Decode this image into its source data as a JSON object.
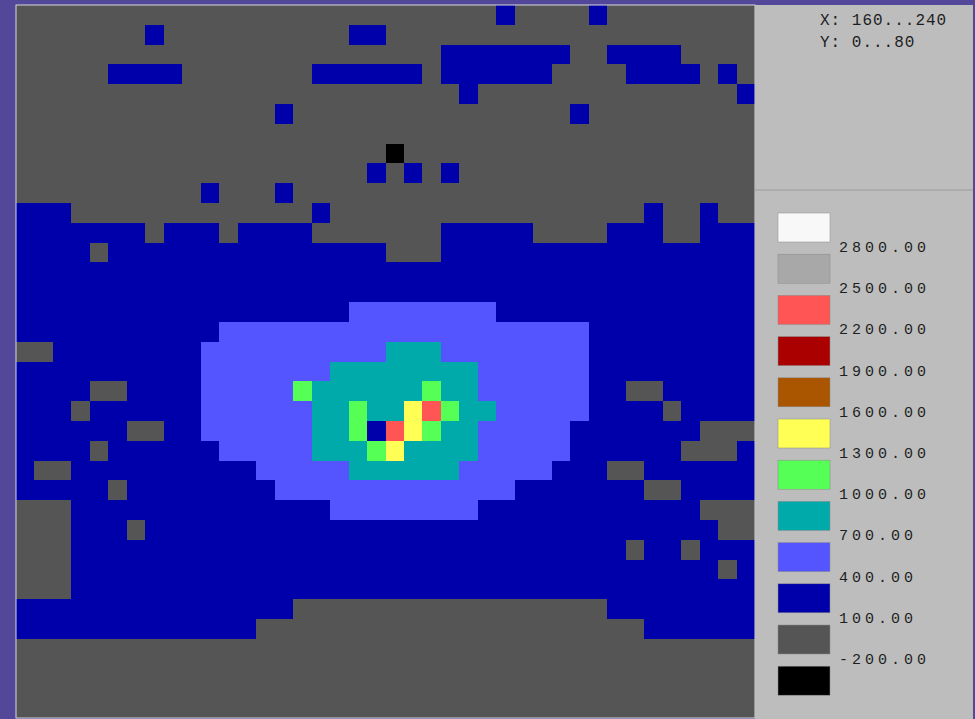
{
  "chart_data": {
    "type": "heatmap",
    "annotations": [
      "X: 160...240",
      "Y: 0...80"
    ],
    "xlim": [
      160,
      240
    ],
    "ylim": [
      0,
      80
    ],
    "tick_labels": false,
    "levels": [
      {
        "value": -200,
        "label": "-200.00"
      },
      {
        "value": 100,
        "label": "100.00"
      },
      {
        "value": 400,
        "label": "400.00"
      },
      {
        "value": 700,
        "label": "700.00"
      },
      {
        "value": 1000,
        "label": "1000.00"
      },
      {
        "value": 1300,
        "label": "1300.00"
      },
      {
        "value": 1600,
        "label": "1600.00"
      },
      {
        "value": 1900,
        "label": "1900.00"
      },
      {
        "value": 2200,
        "label": "2200.00"
      },
      {
        "value": 2500,
        "label": "2500.00"
      },
      {
        "value": 2800,
        "label": "2800.00"
      }
    ],
    "colors": [
      "#000000",
      "#555555",
      "#0000aa",
      "#5555ff",
      "#00aaaa",
      "#55ff55",
      "#ffff55",
      "#aa5500",
      "#aa0000",
      "#ff5555",
      "#a8a8a8",
      "#f8f8f8"
    ],
    "cells": [
      [
        0,
        0,
        0,
        0,
        0,
        0,
        0,
        0,
        0,
        0,
        0,
        0,
        0,
        0,
        0,
        0,
        0,
        0,
        0,
        0,
        0,
        0,
        0,
        0,
        0,
        0,
        200,
        0,
        0,
        0,
        0,
        200,
        0,
        0,
        0,
        0,
        0,
        0,
        0,
        0
      ],
      [
        0,
        0,
        0,
        0,
        0,
        0,
        0,
        200,
        0,
        0,
        0,
        0,
        0,
        0,
        0,
        0,
        0,
        0,
        200,
        200,
        0,
        0,
        0,
        0,
        0,
        0,
        0,
        0,
        0,
        0,
        0,
        0,
        0,
        0,
        0,
        0,
        0,
        0,
        0,
        0
      ],
      [
        0,
        0,
        0,
        0,
        0,
        0,
        0,
        0,
        0,
        0,
        0,
        0,
        0,
        0,
        0,
        0,
        0,
        0,
        0,
        0,
        0,
        0,
        0,
        200,
        200,
        200,
        200,
        200,
        200,
        200,
        0,
        0,
        200,
        200,
        200,
        200,
        0,
        0,
        0,
        0
      ],
      [
        0,
        0,
        0,
        0,
        0,
        200,
        200,
        200,
        200,
        0,
        0,
        0,
        0,
        0,
        0,
        0,
        200,
        200,
        200,
        200,
        200,
        200,
        0,
        200,
        200,
        200,
        200,
        200,
        200,
        0,
        0,
        0,
        0,
        200,
        200,
        200,
        200,
        0,
        200,
        0
      ],
      [
        0,
        0,
        0,
        0,
        0,
        0,
        0,
        0,
        0,
        0,
        0,
        0,
        0,
        0,
        0,
        0,
        0,
        0,
        0,
        0,
        0,
        0,
        0,
        0,
        200,
        0,
        0,
        0,
        0,
        0,
        0,
        0,
        0,
        0,
        0,
        0,
        0,
        0,
        0,
        200
      ],
      [
        0,
        0,
        0,
        0,
        0,
        0,
        0,
        0,
        0,
        0,
        0,
        0,
        0,
        0,
        200,
        0,
        0,
        0,
        0,
        0,
        0,
        0,
        0,
        0,
        0,
        0,
        0,
        0,
        0,
        0,
        200,
        0,
        0,
        0,
        0,
        0,
        0,
        0,
        0,
        0
      ],
      [
        0,
        0,
        0,
        0,
        0,
        0,
        0,
        0,
        0,
        0,
        0,
        0,
        0,
        0,
        0,
        0,
        0,
        0,
        0,
        0,
        0,
        0,
        0,
        0,
        0,
        0,
        0,
        0,
        0,
        0,
        0,
        0,
        0,
        0,
        0,
        0,
        0,
        0,
        0,
        0
      ],
      [
        0,
        0,
        0,
        0,
        0,
        0,
        0,
        0,
        0,
        0,
        0,
        0,
        0,
        0,
        0,
        0,
        0,
        0,
        0,
        0,
        -300,
        0,
        0,
        0,
        0,
        0,
        0,
        0,
        0,
        0,
        0,
        0,
        0,
        0,
        0,
        0,
        0,
        0,
        0,
        0
      ],
      [
        0,
        0,
        0,
        0,
        0,
        0,
        0,
        0,
        0,
        0,
        0,
        0,
        0,
        0,
        0,
        0,
        0,
        0,
        0,
        200,
        0,
        200,
        0,
        200,
        0,
        0,
        0,
        0,
        0,
        0,
        0,
        0,
        0,
        0,
        0,
        0,
        0,
        0,
        0,
        0
      ],
      [
        0,
        0,
        0,
        0,
        0,
        0,
        0,
        0,
        0,
        0,
        200,
        0,
        0,
        0,
        200,
        0,
        0,
        0,
        0,
        0,
        0,
        0,
        0,
        0,
        0,
        0,
        0,
        0,
        0,
        0,
        0,
        0,
        0,
        0,
        0,
        0,
        0,
        0,
        0,
        0
      ],
      [
        200,
        200,
        200,
        0,
        0,
        0,
        0,
        0,
        0,
        0,
        0,
        0,
        0,
        0,
        0,
        0,
        200,
        0,
        0,
        0,
        0,
        0,
        0,
        0,
        0,
        0,
        0,
        0,
        0,
        0,
        0,
        0,
        0,
        0,
        200,
        0,
        0,
        200,
        0,
        0
      ],
      [
        200,
        200,
        200,
        200,
        200,
        200,
        200,
        0,
        200,
        200,
        200,
        0,
        200,
        200,
        200,
        200,
        0,
        0,
        0,
        0,
        0,
        0,
        0,
        200,
        200,
        200,
        200,
        200,
        0,
        0,
        0,
        0,
        200,
        200,
        200,
        0,
        0,
        200,
        200,
        200
      ],
      [
        200,
        200,
        200,
        200,
        0,
        200,
        200,
        200,
        200,
        200,
        200,
        200,
        200,
        200,
        200,
        200,
        200,
        200,
        200,
        200,
        0,
        0,
        0,
        200,
        200,
        200,
        200,
        200,
        200,
        200,
        200,
        200,
        200,
        200,
        200,
        200,
        200,
        200,
        200,
        200
      ],
      [
        200,
        200,
        200,
        200,
        200,
        200,
        200,
        200,
        200,
        200,
        200,
        200,
        200,
        200,
        200,
        200,
        200,
        200,
        200,
        200,
        200,
        200,
        200,
        200,
        200,
        200,
        200,
        200,
        200,
        200,
        200,
        200,
        200,
        200,
        200,
        200,
        200,
        200,
        200,
        200
      ],
      [
        200,
        200,
        200,
        200,
        200,
        200,
        200,
        200,
        200,
        200,
        200,
        200,
        200,
        200,
        200,
        200,
        200,
        200,
        200,
        200,
        200,
        200,
        200,
        200,
        200,
        200,
        200,
        200,
        200,
        200,
        200,
        200,
        200,
        200,
        200,
        200,
        200,
        200,
        200,
        200
      ],
      [
        200,
        200,
        200,
        200,
        200,
        200,
        200,
        200,
        200,
        200,
        200,
        200,
        200,
        200,
        200,
        200,
        200,
        200,
        500,
        500,
        500,
        500,
        500,
        500,
        500,
        500,
        200,
        200,
        200,
        200,
        200,
        200,
        200,
        200,
        200,
        200,
        200,
        200,
        200,
        200
      ],
      [
        200,
        200,
        200,
        200,
        200,
        200,
        200,
        200,
        200,
        200,
        200,
        500,
        500,
        500,
        500,
        500,
        500,
        500,
        500,
        500,
        500,
        500,
        500,
        500,
        500,
        500,
        500,
        500,
        500,
        500,
        500,
        200,
        200,
        200,
        200,
        200,
        200,
        200,
        200,
        200
      ],
      [
        0,
        0,
        200,
        200,
        200,
        200,
        200,
        200,
        200,
        200,
        500,
        500,
        500,
        500,
        500,
        500,
        500,
        500,
        500,
        500,
        800,
        800,
        800,
        500,
        500,
        500,
        500,
        500,
        500,
        500,
        500,
        200,
        200,
        200,
        200,
        200,
        200,
        200,
        200,
        200
      ],
      [
        200,
        200,
        200,
        200,
        200,
        200,
        200,
        200,
        200,
        200,
        500,
        500,
        500,
        500,
        500,
        500,
        500,
        800,
        800,
        800,
        800,
        800,
        800,
        800,
        800,
        500,
        500,
        500,
        500,
        500,
        500,
        200,
        200,
        200,
        200,
        200,
        200,
        200,
        200,
        200
      ],
      [
        200,
        200,
        200,
        200,
        0,
        0,
        200,
        200,
        200,
        200,
        500,
        500,
        500,
        500,
        500,
        1100,
        800,
        800,
        800,
        800,
        800,
        800,
        1100,
        800,
        800,
        500,
        500,
        500,
        500,
        500,
        500,
        200,
        200,
        0,
        0,
        200,
        200,
        200,
        200,
        200
      ],
      [
        200,
        200,
        200,
        0,
        200,
        200,
        200,
        200,
        200,
        200,
        500,
        500,
        500,
        500,
        500,
        500,
        800,
        800,
        1100,
        800,
        800,
        1400,
        2300,
        1100,
        800,
        800,
        500,
        500,
        500,
        500,
        500,
        200,
        200,
        200,
        200,
        0,
        200,
        200,
        200,
        200
      ],
      [
        200,
        200,
        200,
        200,
        200,
        200,
        0,
        0,
        200,
        200,
        500,
        500,
        500,
        500,
        500,
        500,
        800,
        800,
        1100,
        200,
        2300,
        1400,
        1100,
        800,
        800,
        500,
        500,
        500,
        500,
        500,
        200,
        200,
        200,
        200,
        200,
        200,
        200,
        0,
        0,
        0
      ],
      [
        200,
        200,
        200,
        200,
        0,
        200,
        200,
        200,
        200,
        200,
        200,
        500,
        500,
        500,
        500,
        500,
        800,
        800,
        800,
        1100,
        1400,
        800,
        800,
        800,
        800,
        500,
        500,
        500,
        500,
        500,
        200,
        200,
        200,
        200,
        200,
        200,
        0,
        0,
        0,
        200
      ],
      [
        200,
        0,
        0,
        200,
        200,
        200,
        200,
        200,
        200,
        200,
        200,
        200,
        200,
        500,
        500,
        500,
        500,
        500,
        800,
        800,
        800,
        800,
        800,
        800,
        500,
        500,
        500,
        500,
        500,
        200,
        200,
        200,
        0,
        0,
        200,
        200,
        200,
        200,
        200,
        200
      ],
      [
        200,
        200,
        200,
        200,
        200,
        0,
        200,
        200,
        200,
        200,
        200,
        200,
        200,
        200,
        500,
        500,
        500,
        500,
        500,
        500,
        500,
        500,
        500,
        500,
        500,
        500,
        500,
        200,
        200,
        200,
        200,
        200,
        200,
        200,
        0,
        0,
        200,
        200,
        200,
        200
      ],
      [
        0,
        0,
        0,
        200,
        200,
        200,
        200,
        200,
        200,
        200,
        200,
        200,
        200,
        200,
        200,
        200,
        200,
        500,
        500,
        500,
        500,
        500,
        500,
        500,
        500,
        200,
        200,
        200,
        200,
        200,
        200,
        200,
        200,
        200,
        200,
        200,
        200,
        0,
        0,
        0
      ],
      [
        0,
        0,
        0,
        200,
        200,
        200,
        0,
        200,
        200,
        200,
        200,
        200,
        200,
        200,
        200,
        200,
        200,
        200,
        200,
        200,
        200,
        200,
        200,
        200,
        200,
        200,
        200,
        200,
        200,
        200,
        200,
        200,
        200,
        200,
        200,
        200,
        200,
        200,
        0,
        0
      ],
      [
        0,
        0,
        0,
        200,
        200,
        200,
        200,
        200,
        200,
        200,
        200,
        200,
        200,
        200,
        200,
        200,
        200,
        200,
        200,
        200,
        200,
        200,
        200,
        200,
        200,
        200,
        200,
        200,
        200,
        200,
        200,
        200,
        200,
        0,
        200,
        200,
        0,
        200,
        200,
        200
      ],
      [
        0,
        0,
        0,
        200,
        200,
        200,
        200,
        200,
        200,
        200,
        200,
        200,
        200,
        200,
        200,
        200,
        200,
        200,
        200,
        200,
        200,
        200,
        200,
        200,
        200,
        200,
        200,
        200,
        200,
        200,
        200,
        200,
        200,
        200,
        200,
        200,
        200,
        200,
        0,
        200
      ],
      [
        0,
        0,
        0,
        200,
        200,
        200,
        200,
        200,
        200,
        200,
        200,
        200,
        200,
        200,
        200,
        200,
        200,
        200,
        200,
        200,
        200,
        200,
        200,
        200,
        200,
        200,
        200,
        200,
        200,
        200,
        200,
        200,
        200,
        200,
        200,
        200,
        200,
        200,
        200,
        200
      ],
      [
        200,
        200,
        200,
        200,
        200,
        200,
        200,
        200,
        200,
        200,
        200,
        200,
        200,
        200,
        200,
        0,
        0,
        0,
        0,
        0,
        0,
        0,
        0,
        0,
        0,
        0,
        0,
        0,
        0,
        0,
        0,
        0,
        200,
        200,
        200,
        200,
        200,
        200,
        200,
        200
      ],
      [
        200,
        200,
        200,
        200,
        200,
        200,
        200,
        200,
        200,
        200,
        200,
        200,
        200,
        0,
        0,
        0,
        0,
        0,
        0,
        0,
        0,
        0,
        0,
        0,
        0,
        0,
        0,
        0,
        0,
        0,
        0,
        0,
        0,
        0,
        200,
        200,
        200,
        200,
        200,
        200
      ],
      [
        0,
        0,
        0,
        0,
        0,
        0,
        0,
        0,
        0,
        0,
        0,
        0,
        0,
        0,
        0,
        0,
        0,
        0,
        0,
        0,
        0,
        0,
        0,
        0,
        0,
        0,
        0,
        0,
        0,
        0,
        0,
        0,
        0,
        0,
        0,
        0,
        0,
        0,
        0,
        0
      ],
      [
        0,
        0,
        0,
        0,
        0,
        0,
        0,
        0,
        0,
        0,
        0,
        0,
        0,
        0,
        0,
        0,
        0,
        0,
        0,
        0,
        0,
        0,
        0,
        0,
        0,
        0,
        0,
        0,
        0,
        0,
        0,
        0,
        0,
        0,
        0,
        0,
        0,
        0,
        0,
        0
      ],
      [
        0,
        0,
        0,
        0,
        0,
        0,
        0,
        0,
        0,
        0,
        0,
        0,
        0,
        0,
        0,
        0,
        0,
        0,
        0,
        0,
        0,
        0,
        0,
        0,
        0,
        0,
        0,
        0,
        0,
        0,
        0,
        0,
        0,
        0,
        0,
        0,
        0,
        0,
        0,
        0
      ],
      [
        0,
        0,
        0,
        0,
        0,
        0,
        0,
        0,
        0,
        0,
        0,
        0,
        0,
        0,
        0,
        0,
        0,
        0,
        0,
        0,
        0,
        0,
        0,
        0,
        0,
        0,
        0,
        0,
        0,
        0,
        0,
        0,
        0,
        0,
        0,
        0,
        0,
        0,
        0,
        0
      ]
    ]
  }
}
